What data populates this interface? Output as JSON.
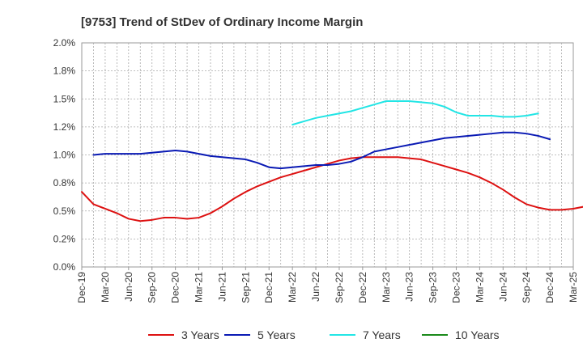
{
  "chart_data": {
    "type": "line",
    "title": "[9753]  Trend of StDev of Ordinary Income Margin",
    "xlabel": "",
    "ylabel": "",
    "ylim": [
      0,
      2.0
    ],
    "yticks": [
      0,
      0.25,
      0.5,
      0.75,
      1.0,
      1.25,
      1.5,
      1.75,
      2.0
    ],
    "ytick_labels": [
      "0.0%",
      "0.2%",
      "0.5%",
      "0.8%",
      "1.0%",
      "1.2%",
      "1.5%",
      "1.8%",
      "2.0%"
    ],
    "x_tick_labels": [
      "Dec-19",
      "Mar-20",
      "Jun-20",
      "Sep-20",
      "Dec-20",
      "Mar-21",
      "Jun-21",
      "Sep-21",
      "Dec-21",
      "Mar-22",
      "Jun-22",
      "Sep-22",
      "Dec-22",
      "Mar-23",
      "Jun-23",
      "Sep-23",
      "Dec-23",
      "Mar-24",
      "Jun-24",
      "Sep-24",
      "Dec-24",
      "Mar-25"
    ],
    "grid": true,
    "legend_position": "bottom",
    "series": [
      {
        "name": "3 Years",
        "color": "#dd1111",
        "start_index": 0,
        "values": [
          0.67,
          0.56,
          0.52,
          0.48,
          0.43,
          0.41,
          0.42,
          0.44,
          0.44,
          0.43,
          0.44,
          0.48,
          0.54,
          0.61,
          0.67,
          0.72,
          0.76,
          0.8,
          0.83,
          0.86,
          0.89,
          0.92,
          0.95,
          0.97,
          0.98,
          0.98,
          0.98,
          0.98,
          0.97,
          0.96,
          0.93,
          0.9,
          0.87,
          0.84,
          0.8,
          0.75,
          0.69,
          0.62,
          0.56,
          0.53,
          0.51,
          0.51,
          0.52,
          0.54
        ]
      },
      {
        "name": "5 Years",
        "color": "#0a1ab4",
        "start_index": 1,
        "values": [
          1.0,
          1.01,
          1.01,
          1.01,
          1.01,
          1.02,
          1.03,
          1.04,
          1.03,
          1.01,
          0.99,
          0.98,
          0.97,
          0.96,
          0.93,
          0.89,
          0.88,
          0.89,
          0.9,
          0.91,
          0.91,
          0.92,
          0.94,
          0.98,
          1.03,
          1.05,
          1.07,
          1.09,
          1.11,
          1.13,
          1.15,
          1.16,
          1.17,
          1.18,
          1.19,
          1.2,
          1.2,
          1.19,
          1.17,
          1.14
        ]
      },
      {
        "name": "7 Years",
        "color": "#22e5e5",
        "start_index": 18,
        "values": [
          1.27,
          1.3,
          1.33,
          1.35,
          1.37,
          1.39,
          1.42,
          1.45,
          1.48,
          1.48,
          1.48,
          1.47,
          1.46,
          1.43,
          1.38,
          1.35,
          1.35,
          1.35,
          1.34,
          1.34,
          1.35,
          1.37
        ]
      },
      {
        "name": "10 Years",
        "color": "#1a8a1a",
        "start_index": 0,
        "values": []
      }
    ]
  }
}
